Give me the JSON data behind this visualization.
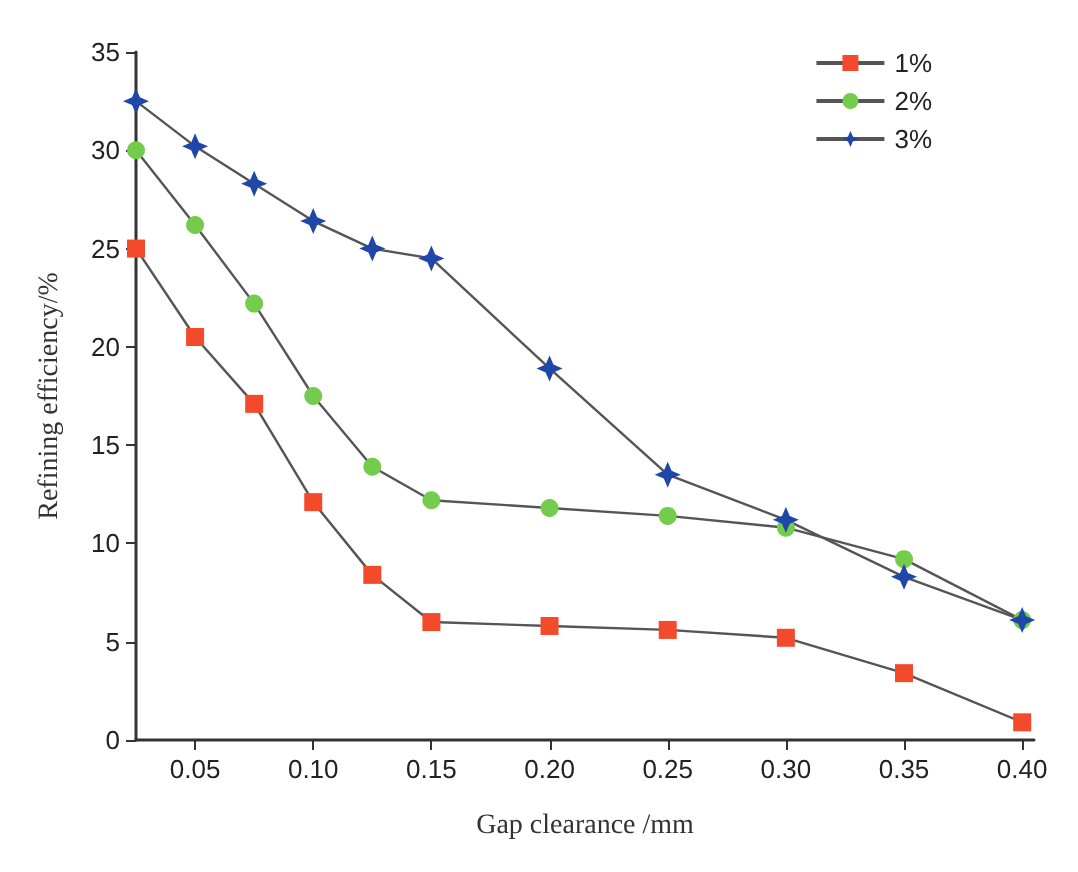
{
  "chart_data": {
    "type": "line",
    "xlabel": "Gap clearance /mm",
    "ylabel": "Refining efficiency/%",
    "x": [
      0.025,
      0.05,
      0.075,
      0.1,
      0.125,
      0.15,
      0.2,
      0.25,
      0.3,
      0.35,
      0.4
    ],
    "series": [
      {
        "name": "1%",
        "color": "#f44a2c",
        "marker": "square",
        "values": [
          25,
          20.5,
          17.1,
          12.1,
          8.4,
          6.0,
          5.8,
          5.6,
          5.2,
          3.4,
          0.9
        ]
      },
      {
        "name": "2%",
        "color": "#74cc4c",
        "marker": "circle",
        "values": [
          30,
          26.2,
          22.2,
          17.5,
          13.9,
          12.2,
          11.8,
          11.4,
          10.8,
          9.2,
          6.1
        ]
      },
      {
        "name": "3%",
        "color": "#1f47a8",
        "marker": "star",
        "values": [
          32.5,
          30.2,
          28.3,
          26.4,
          25.0,
          24.5,
          18.9,
          13.5,
          11.2,
          8.3,
          6.1
        ]
      }
    ],
    "xlim": [
      0.025,
      0.405
    ],
    "xticks": [
      0.05,
      {
        "value": 0.1,
        "label": "0.10"
      },
      0.15,
      {
        "value": 0.2,
        "label": "0.20"
      },
      0.25,
      {
        "value": 0.3,
        "label": "0.30"
      },
      0.35,
      {
        "value": 0.4,
        "label": "0.40"
      }
    ],
    "ylim": [
      0,
      35
    ],
    "yticks": [
      0,
      5,
      10,
      15,
      20,
      25,
      30,
      35
    ],
    "grid": false,
    "legend": "top right",
    "line_style": "solid"
  }
}
